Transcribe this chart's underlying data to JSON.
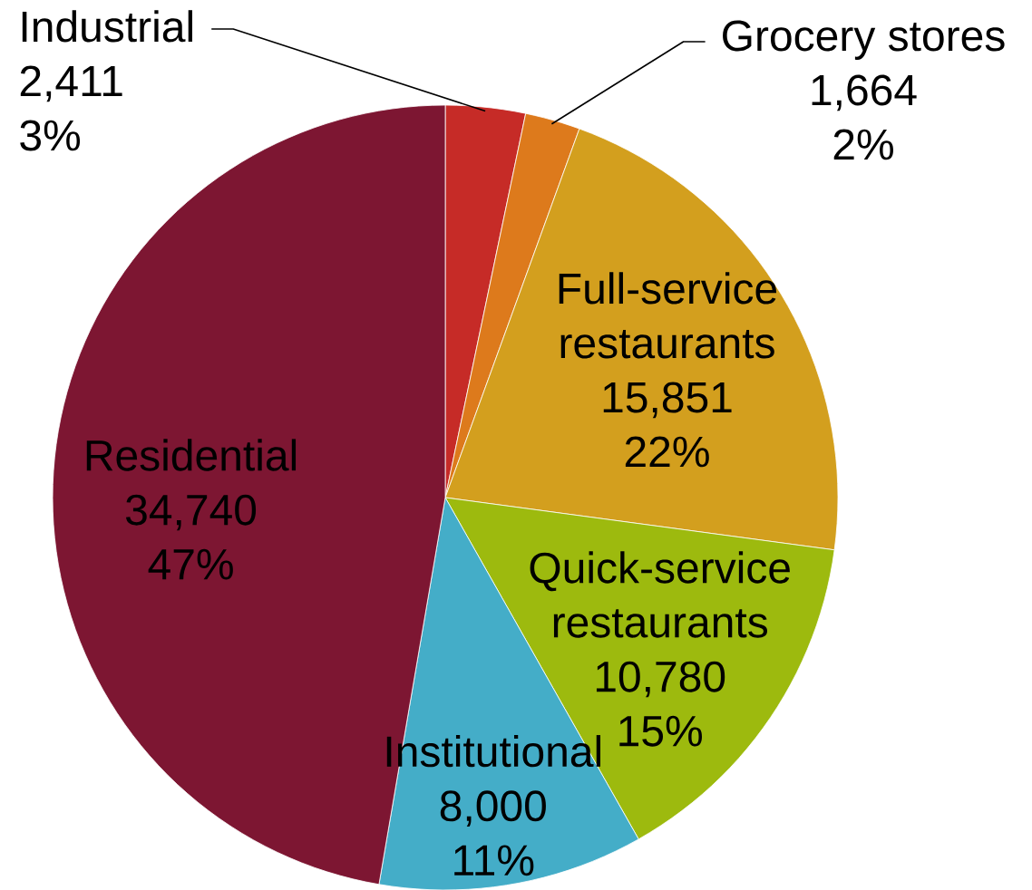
{
  "chart_data": {
    "type": "pie",
    "categories": [
      "Industrial",
      "Grocery stores",
      "Full-service restaurants",
      "Quick-service restaurants",
      "Institutional",
      "Residential"
    ],
    "values": [
      2411,
      1664,
      15851,
      10780,
      8000,
      34740
    ],
    "value_labels": [
      "2,411 3%",
      "1,664 2%",
      "15,851 22%",
      "10,780 15%",
      "8,000 11%",
      "34,740 47%"
    ],
    "colors": [
      "#c62b27",
      "#dd7a1c",
      "#d39f1e",
      "#9dba0e",
      "#44adc8",
      "#7d1632"
    ]
  }
}
